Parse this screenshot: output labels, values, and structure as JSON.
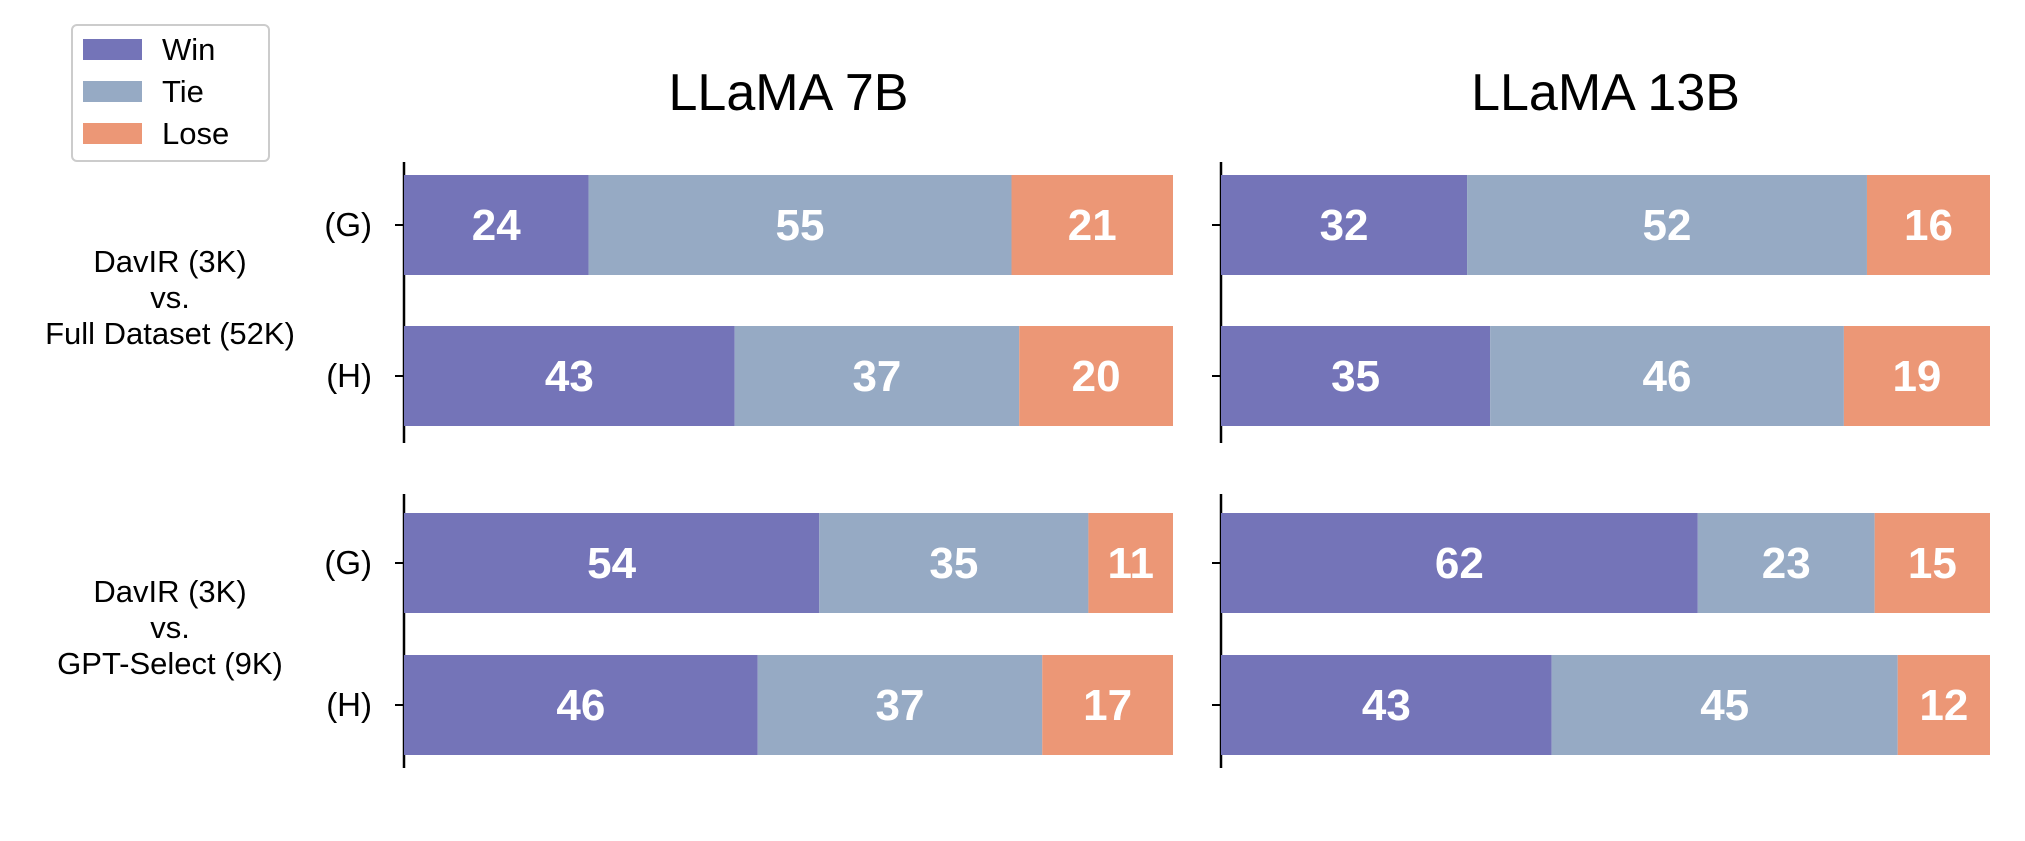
{
  "chart_data": {
    "type": "bar",
    "orientation": "horizontal",
    "stacked": true,
    "xlim": [
      0,
      100
    ],
    "legend": {
      "placement": "top-left",
      "entries": [
        {
          "name": "Win",
          "color": "#7474b8"
        },
        {
          "name": "Tie",
          "color": "#96aac4"
        },
        {
          "name": "Lose",
          "color": "#ec9776"
        }
      ]
    },
    "row_groups": [
      {
        "label_lines": [
          "DavIR (3K)",
          "vs.",
          "Full Dataset (52K)"
        ],
        "rows": [
          "(G)",
          "(H)"
        ]
      },
      {
        "label_lines": [
          "DavIR (3K)",
          "vs.",
          "GPT-Select (9K)"
        ],
        "rows": [
          "(G)",
          "(H)"
        ]
      }
    ],
    "panels": [
      {
        "title": "LLaMA 7B",
        "groups": [
          [
            {
              "Win": 24,
              "Tie": 55,
              "Lose": 21
            },
            {
              "Win": 43,
              "Tie": 37,
              "Lose": 20
            }
          ],
          [
            {
              "Win": 54,
              "Tie": 35,
              "Lose": 11
            },
            {
              "Win": 46,
              "Tie": 37,
              "Lose": 17
            }
          ]
        ]
      },
      {
        "title": "LLaMA 13B",
        "groups": [
          [
            {
              "Win": 32,
              "Tie": 52,
              "Lose": 16
            },
            {
              "Win": 35,
              "Tie": 46,
              "Lose": 19
            }
          ],
          [
            {
              "Win": 62,
              "Tie": 23,
              "Lose": 15
            },
            {
              "Win": 43,
              "Tie": 45,
              "Lose": 12
            }
          ]
        ]
      }
    ]
  }
}
